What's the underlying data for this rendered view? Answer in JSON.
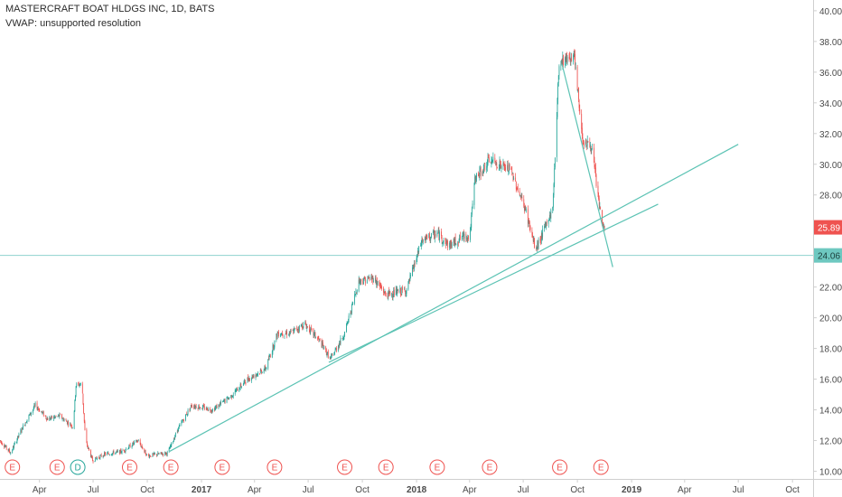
{
  "header": {
    "symbol_line": "MASTERCRAFT BOAT HLDGS INC, 1D, BATS",
    "indicator_line": "VWAP: unsupported resolution"
  },
  "colors": {
    "up": "#26a69a",
    "down": "#ef5350",
    "trendline": "#5cc3b4",
    "hline": "#8fd3cf",
    "last_price_bg": "#ef5350",
    "hline_price_bg": "#6ec8c0",
    "earnings": "#ef5350",
    "dividend": "#26a69a",
    "axis_text": "#4a4a4a",
    "axis_line": "#cfcfcf"
  },
  "chart_data": {
    "type": "candlestick",
    "symbol": "MASTERCRAFT BOAT HLDGS INC",
    "interval": "1D",
    "exchange": "BATS",
    "ylim": [
      9.5,
      40.7
    ],
    "y_ticks": [
      "10.00",
      "12.00",
      "14.00",
      "16.00",
      "18.00",
      "20.00",
      "22.00",
      "24.00",
      "26.00",
      "28.00",
      "30.00",
      "32.00",
      "34.00",
      "36.00",
      "38.00",
      "40.00"
    ],
    "x_ticks": [
      "Apr",
      "Jul",
      "Oct",
      "2017",
      "Apr",
      "Jul",
      "Oct",
      "2018",
      "Apr",
      "Jul",
      "Oct",
      "2019",
      "Apr",
      "Jul",
      "Oct"
    ],
    "x_range": [
      "2016-01-25",
      "2019-11-05"
    ],
    "last_price": "25.89",
    "horizontal_line": "24.06",
    "price_path": [
      [
        "2016-01-25",
        12.0
      ],
      [
        "2016-02-12",
        11.2
      ],
      [
        "2016-03-05",
        13.0
      ],
      [
        "2016-03-25",
        14.3
      ],
      [
        "2016-04-15",
        13.4
      ],
      [
        "2016-05-05",
        13.6
      ],
      [
        "2016-05-28",
        12.9
      ],
      [
        "2016-06-02",
        15.6
      ],
      [
        "2016-06-12",
        15.7
      ],
      [
        "2016-06-18",
        12.0
      ],
      [
        "2016-06-30",
        10.7
      ],
      [
        "2016-07-20",
        11.1
      ],
      [
        "2016-08-20",
        11.3
      ],
      [
        "2016-09-15",
        12.0
      ],
      [
        "2016-10-01",
        11.0
      ],
      [
        "2016-11-05",
        11.2
      ],
      [
        "2016-11-20",
        12.6
      ],
      [
        "2016-12-15",
        14.3
      ],
      [
        "2017-01-20",
        14.0
      ],
      [
        "2017-02-20",
        14.9
      ],
      [
        "2017-03-20",
        16.0
      ],
      [
        "2017-04-20",
        16.7
      ],
      [
        "2017-05-10",
        19.0
      ],
      [
        "2017-06-01",
        19.0
      ],
      [
        "2017-06-25",
        19.6
      ],
      [
        "2017-07-20",
        18.5
      ],
      [
        "2017-08-08",
        17.3
      ],
      [
        "2017-09-01",
        19.0
      ],
      [
        "2017-09-25",
        22.4
      ],
      [
        "2017-10-20",
        22.6
      ],
      [
        "2017-11-10",
        21.5
      ],
      [
        "2017-12-15",
        21.8
      ],
      [
        "2018-01-10",
        25.0
      ],
      [
        "2018-02-05",
        25.5
      ],
      [
        "2018-02-25",
        24.7
      ],
      [
        "2018-03-25",
        25.4
      ],
      [
        "2018-04-01",
        25.2
      ],
      [
        "2018-04-10",
        29.0
      ],
      [
        "2018-05-05",
        30.3
      ],
      [
        "2018-06-10",
        29.6
      ],
      [
        "2018-07-05",
        27.0
      ],
      [
        "2018-07-22",
        24.4
      ],
      [
        "2018-08-20",
        27.1
      ],
      [
        "2018-08-31",
        36.7
      ],
      [
        "2018-09-25",
        37.1
      ],
      [
        "2018-10-10",
        31.6
      ],
      [
        "2018-10-25",
        31.1
      ],
      [
        "2018-11-12",
        26.0
      ],
      [
        "2018-11-18",
        25.89
      ]
    ],
    "trendlines": [
      {
        "from": [
          "2016-11-08",
          11.3
        ],
        "to": [
          "2019-07-01",
          31.3
        ]
      },
      {
        "from": [
          "2017-08-05",
          17.1
        ],
        "to": [
          "2019-02-15",
          27.4
        ]
      },
      {
        "from": [
          "2018-09-05",
          36.5
        ],
        "to": [
          "2018-11-30",
          23.3
        ]
      }
    ],
    "events": [
      {
        "date": "2016-02-15",
        "label": "E"
      },
      {
        "date": "2016-05-01",
        "label": "E"
      },
      {
        "date": "2016-06-05",
        "label": "D"
      },
      {
        "date": "2016-09-01",
        "label": "E"
      },
      {
        "date": "2016-11-10",
        "label": "E"
      },
      {
        "date": "2017-02-05",
        "label": "E"
      },
      {
        "date": "2017-05-05",
        "label": "E"
      },
      {
        "date": "2017-09-01",
        "label": "E"
      },
      {
        "date": "2017-11-10",
        "label": "E"
      },
      {
        "date": "2018-02-05",
        "label": "E"
      },
      {
        "date": "2018-05-05",
        "label": "E"
      },
      {
        "date": "2018-09-01",
        "label": "E"
      },
      {
        "date": "2018-11-10",
        "label": "E"
      }
    ]
  }
}
